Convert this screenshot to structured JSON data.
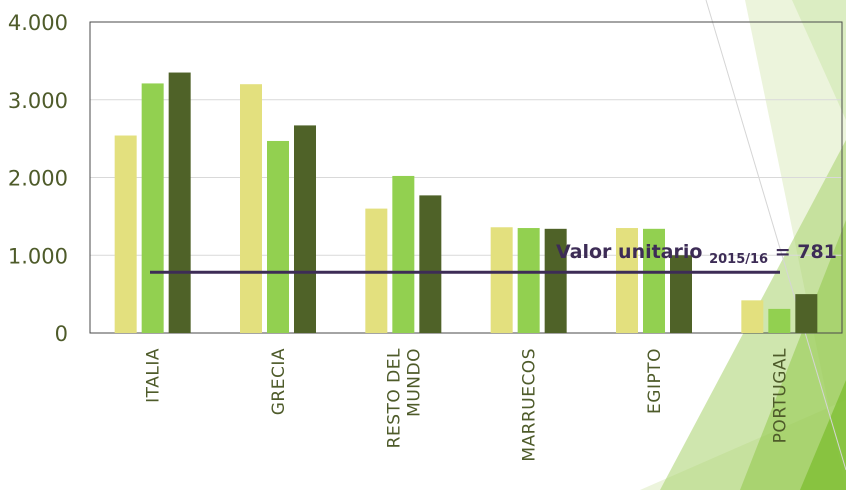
{
  "chart_data": {
    "type": "bar",
    "title": "",
    "xlabel": "",
    "ylabel": "",
    "ylim": [
      0,
      4000
    ],
    "yticks": [
      "0",
      "1.000",
      "2.000",
      "3.000",
      "4.000"
    ],
    "ytick_values": [
      0,
      1000,
      2000,
      3000,
      4000
    ],
    "grid": true,
    "legend": "none",
    "categories": [
      [
        "ITALIA"
      ],
      [
        "GRECIA"
      ],
      [
        "RESTO DEL",
        "MUNDO"
      ],
      [
        "MARRUECOS"
      ],
      [
        "EGIPTO"
      ],
      [
        "PORTUGAL"
      ]
    ],
    "series": [
      {
        "color": "#e3e07e",
        "values": [
          2540,
          3200,
          1600,
          1360,
          1350,
          420
        ]
      },
      {
        "color": "#92d050",
        "values": [
          3210,
          2470,
          2020,
          1350,
          1340,
          310
        ]
      },
      {
        "color": "#4f6228",
        "values": [
          3350,
          2670,
          1770,
          1340,
          1000,
          500
        ]
      }
    ],
    "reference_line": {
      "value": 781,
      "color": "#3d2c56",
      "label_main": "Valor unitario",
      "label_sub": "2015/16",
      "label_suffix": "= 781"
    }
  }
}
